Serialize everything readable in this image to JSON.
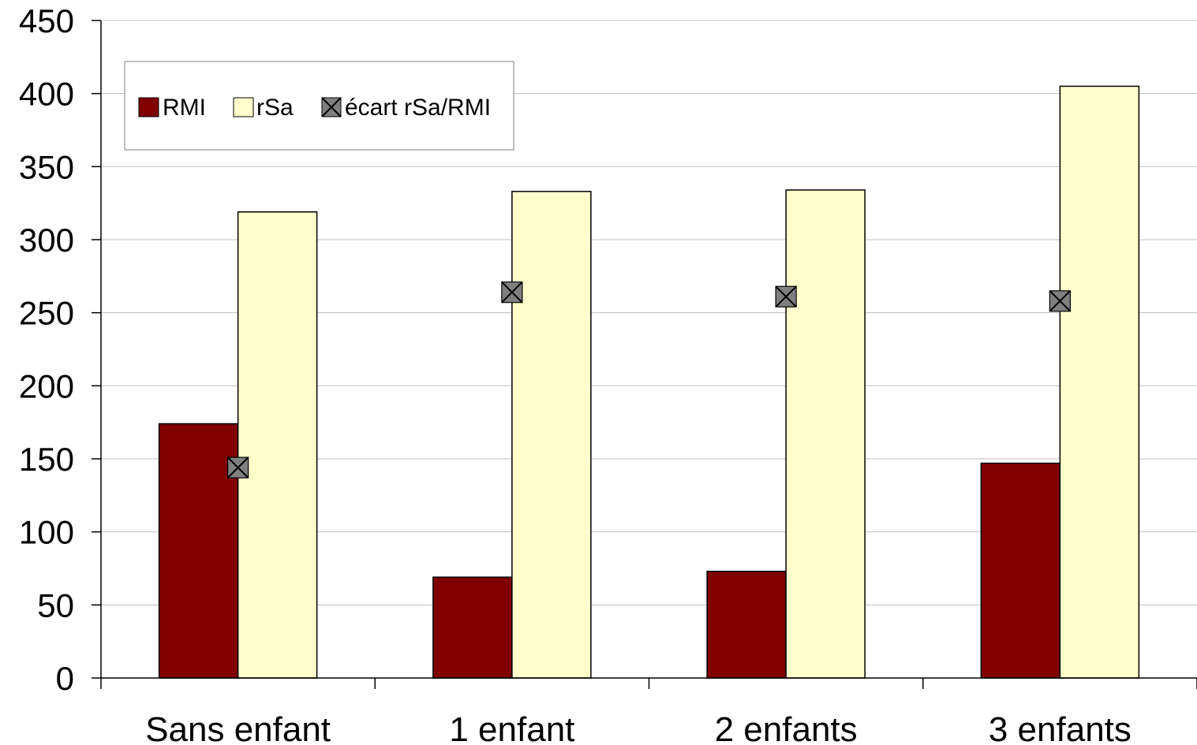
{
  "chart_data": {
    "type": "bar",
    "title": "",
    "xlabel": "",
    "ylabel": "",
    "categories": [
      "Sans enfant",
      "1 enfant",
      "2 enfants",
      "3 enfants"
    ],
    "ylim": [
      0,
      450
    ],
    "yticks": [
      0,
      50,
      100,
      150,
      200,
      250,
      300,
      350,
      400,
      450
    ],
    "grid": true,
    "legend_position": "top-left",
    "series": [
      {
        "name": "RMI",
        "kind": "bar",
        "color": "#800000",
        "values": [
          174,
          69,
          73,
          147
        ]
      },
      {
        "name": "rSa",
        "kind": "bar",
        "color": "#FFFFCC",
        "values": [
          319,
          333,
          334,
          405
        ]
      },
      {
        "name": "écart rSa/RMI",
        "kind": "marker",
        "marker": "boxed-x",
        "color": "#808080",
        "values": [
          144,
          264,
          261,
          258
        ]
      }
    ]
  }
}
